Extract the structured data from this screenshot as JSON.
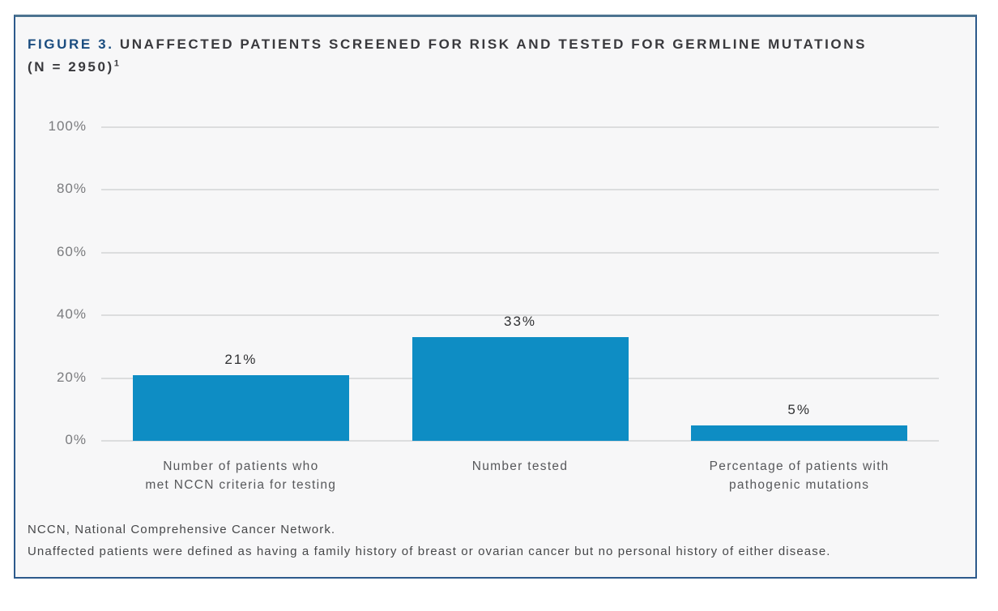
{
  "figure": {
    "label": "FIGURE 3.",
    "title_rest": "UNAFFECTED PATIENTS SCREENED FOR RISK AND TESTED FOR GERMLINE MUTATIONS",
    "title_line2": "(N = 2950)",
    "reference_marker": "1"
  },
  "chart_data": {
    "type": "bar",
    "title": "Unaffected patients screened for risk and tested for germline mutations (N = 2950)",
    "categories": [
      "Number of patients who met NCCN criteria for testing",
      "Number tested",
      "Percentage of patients with pathogenic mutations"
    ],
    "categories_wrapped": [
      [
        "Number of patients who",
        "met NCCN criteria for testing"
      ],
      [
        "Number tested"
      ],
      [
        "Percentage of patients with",
        "pathogenic mutations"
      ]
    ],
    "values": [
      21,
      33,
      5
    ],
    "value_labels": [
      "21%",
      "33%",
      "5%"
    ],
    "xlabel": "",
    "ylabel": "",
    "ylim": [
      0,
      100
    ],
    "y_tick_values": [
      0,
      20,
      40,
      60,
      80,
      100
    ],
    "y_tick_labels": [
      "0%",
      "20%",
      "40%",
      "60%",
      "80%",
      "100%"
    ],
    "grid": true,
    "legend": "none",
    "bar_color": "#0e8dc4"
  },
  "footnotes": [
    "NCCN, National Comprehensive Cancer Network.",
    "Unaffected patients were defined as having a family history of breast or ovarian cancer but no personal history of either disease."
  ],
  "colors": {
    "card_background": "#f7f7f8",
    "card_border": "#2d5a8c",
    "card_border_top": "#4c7390",
    "title_accent": "#1b4d80",
    "title_text": "#39393d",
    "gridline": "#dcddde",
    "axis_label": "#7a7b7e",
    "value_label": "#2f3032",
    "category_label": "#57585b",
    "footnote_text": "#47484a",
    "bar": "#0e8dc4"
  }
}
